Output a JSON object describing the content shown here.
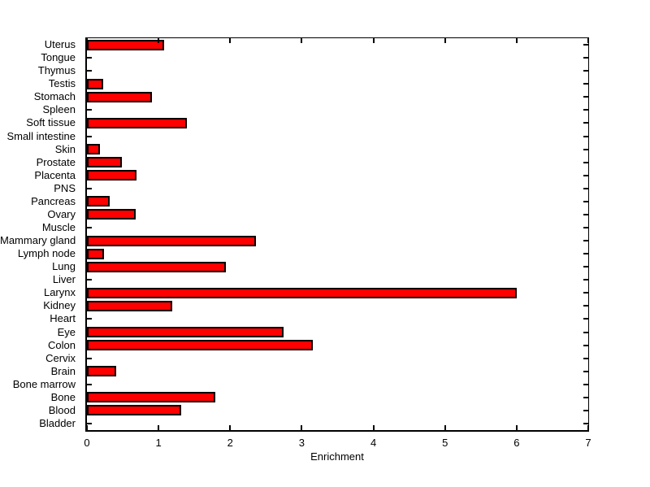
{
  "chart_data": {
    "type": "bar",
    "orientation": "horizontal",
    "title": "",
    "xlabel": "Enrichment",
    "xlim": [
      0,
      7
    ],
    "x_ticks": [
      0,
      1,
      2,
      3,
      4,
      5,
      6,
      7
    ],
    "grid": false,
    "legend": "none",
    "bar_color": "#FF0000",
    "bar_edge_color": "#000000",
    "background_color": "#FFFFFF",
    "categories_top_to_bottom": [
      "Uterus",
      "Tongue",
      "Thymus",
      "Testis",
      "Stomach",
      "Spleen",
      "Soft tissue",
      "Small intestine",
      "Skin",
      "Prostate",
      "Placenta",
      "PNS",
      "Pancreas",
      "Ovary",
      "Muscle",
      "Mammary gland",
      "Lymph node",
      "Lung",
      "Liver",
      "Larynx",
      "Kidney",
      "Heart",
      "Eye",
      "Colon",
      "Cervix",
      "Brain",
      "Bone marrow",
      "Bone",
      "Blood",
      "Bladder"
    ],
    "values": [
      1.08,
      0,
      0,
      0.23,
      0.91,
      0,
      1.4,
      0,
      0.18,
      0.49,
      0.69,
      0,
      0.32,
      0.68,
      0,
      2.36,
      0.24,
      1.94,
      0,
      6.0,
      1.19,
      0,
      2.75,
      3.15,
      0,
      0.41,
      0,
      1.79,
      1.32,
      0
    ]
  }
}
